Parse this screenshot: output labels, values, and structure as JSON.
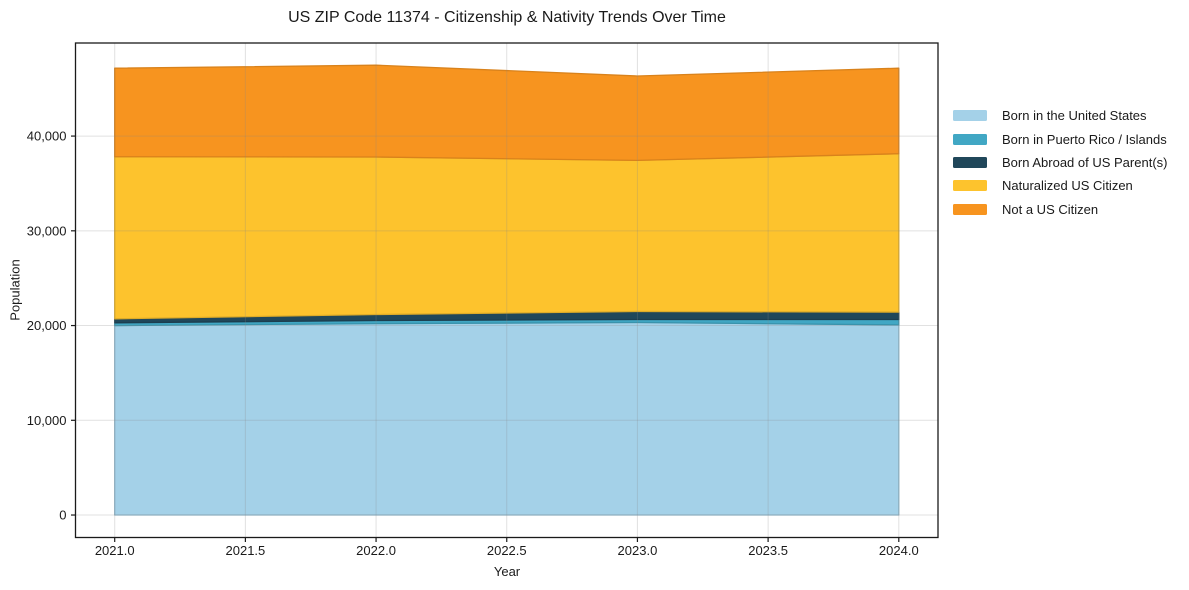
{
  "chart_data": {
    "type": "area",
    "stacked": true,
    "title": "US ZIP Code 11374 - Citizenship & Nativity Trends Over Time",
    "xlabel": "Year",
    "ylabel": "Population",
    "x": [
      2021,
      2022,
      2023,
      2024
    ],
    "series": [
      {
        "name": "Born in the United States",
        "color": "#a4d1e8",
        "values": [
          20000,
          20210,
          20320,
          20070
        ]
      },
      {
        "name": "Born in Puerto Rico / Islands",
        "color": "#41a7c4",
        "values": [
          290,
          320,
          320,
          570
        ]
      },
      {
        "name": "Born Abroad of US Parent(s)",
        "color": "#20475a",
        "values": [
          420,
          640,
          840,
          780
        ]
      },
      {
        "name": "Naturalized US Citizen",
        "color": "#fdc32d",
        "values": [
          17115,
          16620,
          15950,
          16720
        ]
      },
      {
        "name": "Not a US Citizen",
        "color": "#f7941f",
        "values": [
          9335,
          9690,
          8910,
          9020
        ]
      }
    ],
    "totals": [
      47160,
      47480,
      46340,
      47160
    ],
    "xticks": {
      "values": [
        2021.0,
        2021.5,
        2022.0,
        2022.5,
        2023.0,
        2023.5,
        2024.0
      ],
      "labels": [
        "2021.0",
        "2021.5",
        "2022.0",
        "2022.5",
        "2023.0",
        "2023.5",
        "2024.0"
      ]
    },
    "yticks": {
      "values": [
        0,
        10000,
        20000,
        30000,
        40000
      ],
      "labels": [
        "0",
        "10,000",
        "20,000",
        "30,000",
        "40,000"
      ]
    },
    "xlim": [
      2020.85,
      2024.15
    ],
    "ylim": [
      -2372,
      49825
    ],
    "grid": true,
    "legend_position": "outside-right",
    "colors": {
      "text": "#1a1a1a",
      "spine": "#1a1a1a",
      "grid": "#888888",
      "background": "#ffffff"
    }
  }
}
